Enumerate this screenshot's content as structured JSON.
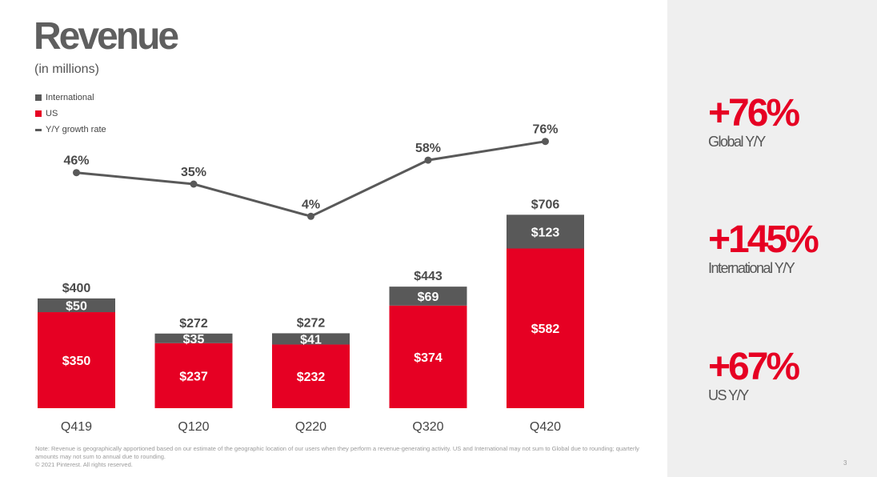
{
  "title": "Revenue",
  "subtitle": "(in millions)",
  "legend": [
    {
      "label": "International",
      "color": "#595959",
      "kind": "box"
    },
    {
      "label": "US",
      "color": "#e60023",
      "kind": "box"
    },
    {
      "label": "Y/Y growth rate",
      "color": "#595959",
      "kind": "line"
    }
  ],
  "chart_data": {
    "type": "bar",
    "stacked": true,
    "categories": [
      "Q419",
      "Q120",
      "Q220",
      "Q320",
      "Q420"
    ],
    "series": [
      {
        "name": "US",
        "values": [
          350,
          237,
          232,
          374,
          582
        ],
        "labels": [
          "$350",
          "$237",
          "$232",
          "$374",
          "$582"
        ],
        "color": "#e60023"
      },
      {
        "name": "International",
        "values": [
          50,
          35,
          41,
          69,
          123
        ],
        "labels": [
          "$50",
          "$35",
          "$41",
          "$69",
          "$123"
        ],
        "color": "#595959"
      }
    ],
    "totals": [
      400,
      272,
      272,
      443,
      706
    ],
    "total_labels": [
      "$400",
      "$272",
      "$272",
      "$443",
      "$706"
    ],
    "growth_rate": {
      "name": "Y/Y growth rate",
      "values": [
        46,
        35,
        4,
        58,
        76
      ],
      "labels": [
        "46%",
        "35%",
        "4%",
        "58%",
        "76%"
      ],
      "color": "#595959"
    }
  },
  "stats": [
    {
      "value": "+76%",
      "label": "Global Y/Y"
    },
    {
      "value": "+145%",
      "label": "International Y/Y"
    },
    {
      "value": "+67%",
      "label": "US Y/Y"
    }
  ],
  "footer": {
    "note": "Note: Revenue is geographically apportioned based on our estimate of the geographic location of our users when they perform a revenue-generating activity. US and International may not sum to Global due to rounding; quarterly amounts may not sum to annual due to rounding.",
    "copyright": "© 2021 Pinterest. All rights reserved.",
    "page": "3"
  }
}
